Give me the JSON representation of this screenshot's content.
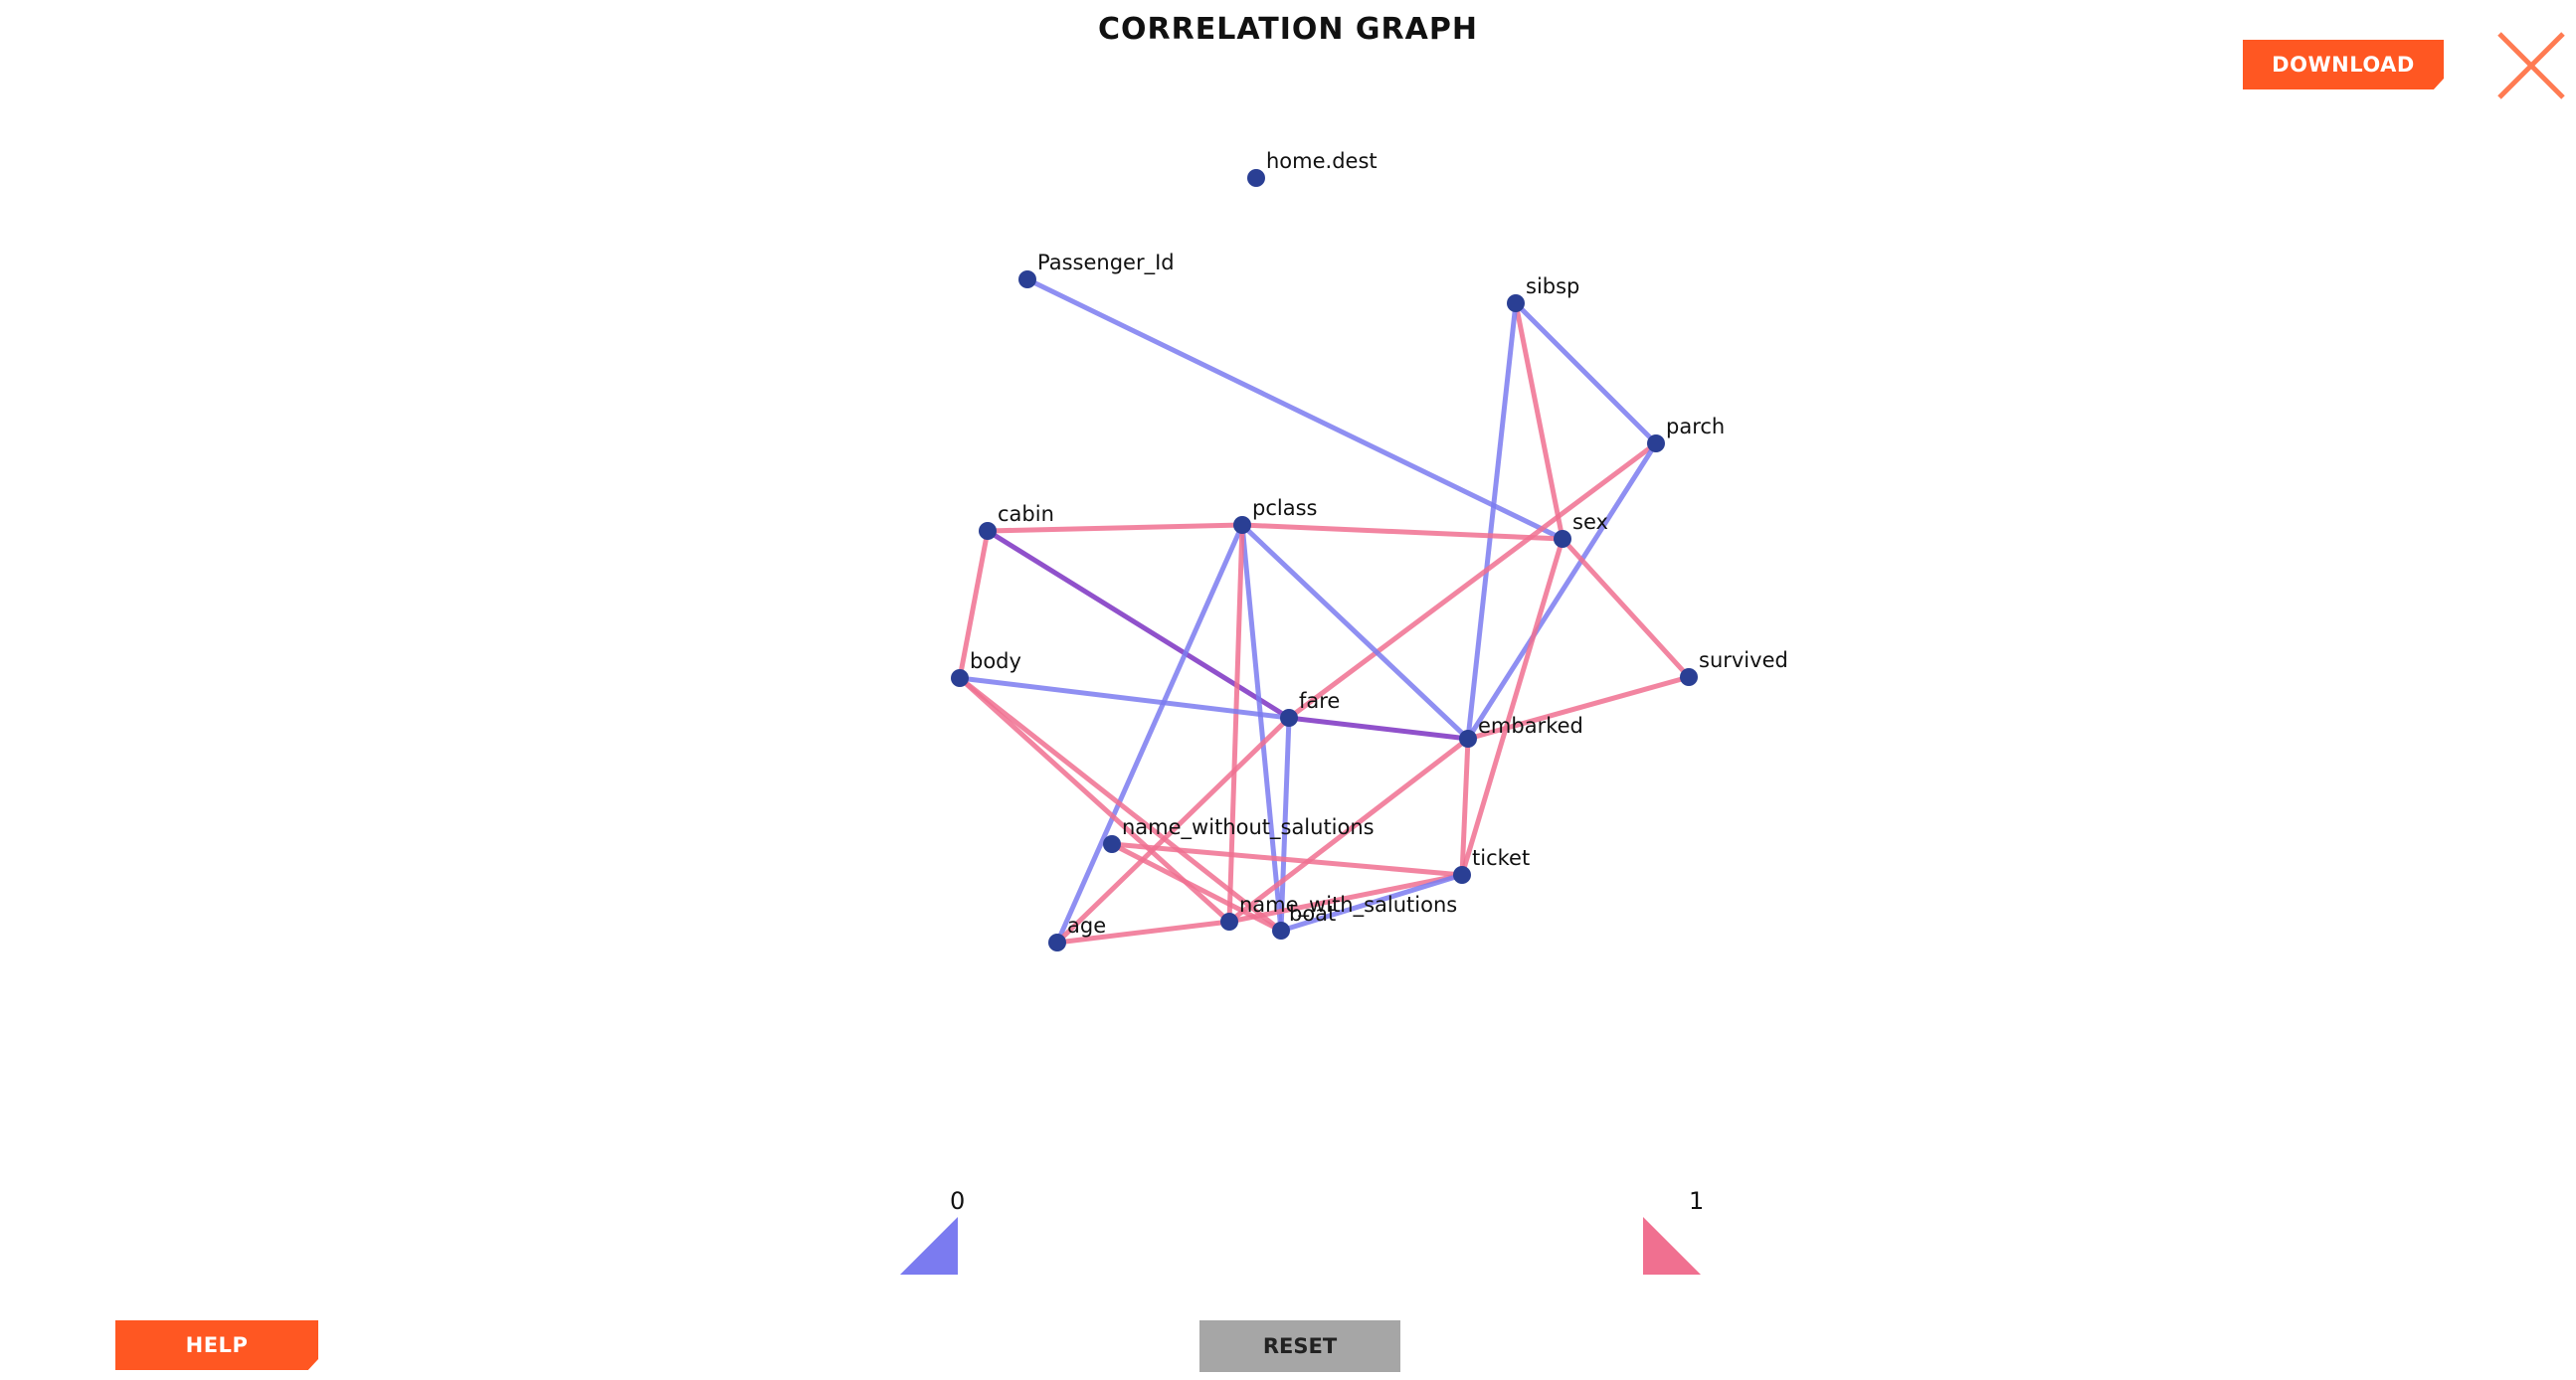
{
  "title": "CORRELATION GRAPH",
  "buttons": {
    "download": "DOWNLOAD",
    "help": "HELP",
    "reset": "RESET"
  },
  "icons": {
    "close": "close-icon"
  },
  "colors": {
    "accent": "#ff5722",
    "close": "#ff7b52",
    "node": "#2a3f94",
    "edge_low": "#7b7bf0",
    "edge_high": "#f07090",
    "edge_mid": "#8a48c8",
    "reset_bg": "#a6a6a6",
    "scale_start": "#2a2ad0",
    "scale_end": "#e0285a"
  },
  "scale": {
    "min_label": "0",
    "max_label": "1"
  },
  "nodes": [
    {
      "id": "home.dest",
      "label": "home.dest"
    },
    {
      "id": "Passenger_Id",
      "label": "Passenger_Id"
    },
    {
      "id": "sibsp",
      "label": "sibsp"
    },
    {
      "id": "parch",
      "label": "parch"
    },
    {
      "id": "cabin",
      "label": "cabin"
    },
    {
      "id": "pclass",
      "label": "pclass"
    },
    {
      "id": "sex",
      "label": "sex"
    },
    {
      "id": "body",
      "label": "body"
    },
    {
      "id": "survived",
      "label": "survived"
    },
    {
      "id": "fare",
      "label": "fare"
    },
    {
      "id": "embarked",
      "label": "embarked"
    },
    {
      "id": "name_without_salutions",
      "label": "name_without_salutions"
    },
    {
      "id": "ticket",
      "label": "ticket"
    },
    {
      "id": "name_with_salutions",
      "label": "name_with_salutions"
    },
    {
      "id": "boat",
      "label": "boat"
    },
    {
      "id": "age",
      "label": "age"
    }
  ],
  "edges": [
    {
      "source": "Passenger_Id",
      "target": "sex",
      "strength": "low"
    },
    {
      "source": "sibsp",
      "target": "parch",
      "strength": "low"
    },
    {
      "source": "sibsp",
      "target": "sex",
      "strength": "high"
    },
    {
      "source": "sibsp",
      "target": "embarked",
      "strength": "low"
    },
    {
      "source": "parch",
      "target": "fare",
      "strength": "high"
    },
    {
      "source": "parch",
      "target": "embarked",
      "strength": "low"
    },
    {
      "source": "cabin",
      "target": "pclass",
      "strength": "high"
    },
    {
      "source": "cabin",
      "target": "body",
      "strength": "high"
    },
    {
      "source": "cabin",
      "target": "fare",
      "strength": "mid"
    },
    {
      "source": "pclass",
      "target": "sex",
      "strength": "high"
    },
    {
      "source": "pclass",
      "target": "embarked",
      "strength": "low"
    },
    {
      "source": "pclass",
      "target": "age",
      "strength": "low"
    },
    {
      "source": "pclass",
      "target": "boat",
      "strength": "low"
    },
    {
      "source": "pclass",
      "target": "name_with_salutions",
      "strength": "high"
    },
    {
      "source": "sex",
      "target": "survived",
      "strength": "high"
    },
    {
      "source": "sex",
      "target": "ticket",
      "strength": "high"
    },
    {
      "source": "body",
      "target": "fare",
      "strength": "low"
    },
    {
      "source": "body",
      "target": "name_with_salutions",
      "strength": "high"
    },
    {
      "source": "body",
      "target": "boat",
      "strength": "high"
    },
    {
      "source": "survived",
      "target": "embarked",
      "strength": "high"
    },
    {
      "source": "fare",
      "target": "embarked",
      "strength": "mid"
    },
    {
      "source": "fare",
      "target": "age",
      "strength": "high"
    },
    {
      "source": "fare",
      "target": "boat",
      "strength": "low"
    },
    {
      "source": "embarked",
      "target": "ticket",
      "strength": "high"
    },
    {
      "source": "embarked",
      "target": "name_with_salutions",
      "strength": "high"
    },
    {
      "source": "name_without_salutions",
      "target": "ticket",
      "strength": "high"
    },
    {
      "source": "name_without_salutions",
      "target": "boat",
      "strength": "high"
    },
    {
      "source": "name_with_salutions",
      "target": "ticket",
      "strength": "high"
    },
    {
      "source": "name_with_salutions",
      "target": "age",
      "strength": "high"
    },
    {
      "source": "boat",
      "target": "ticket",
      "strength": "low"
    }
  ]
}
